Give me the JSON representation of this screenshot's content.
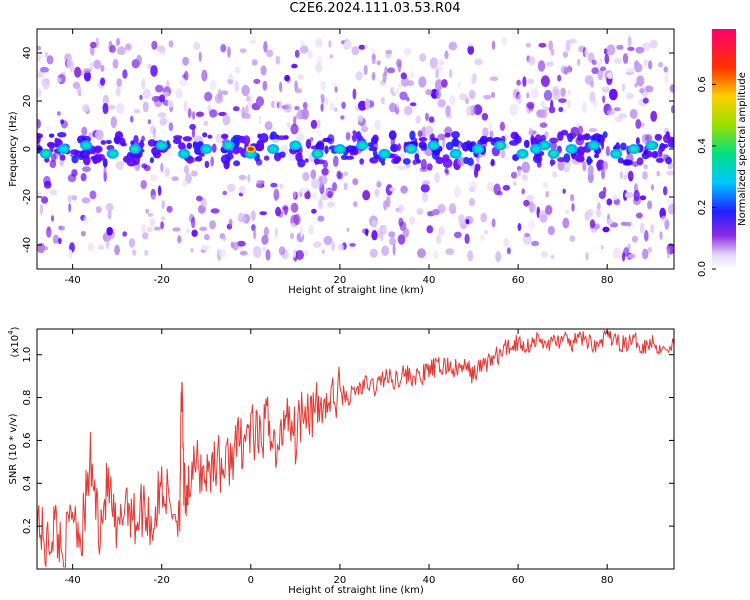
{
  "title": "C2E6.2024.111.03.53.R04",
  "colors": {
    "snr_line": "#e53935",
    "background": "#ffffff"
  },
  "chart_data": [
    {
      "type": "heatmap",
      "title": "C2E6.2024.111.03.53.R04",
      "xlabel": "Height of straight line (km)",
      "ylabel": "Frequency (Hz)",
      "xlim": [
        -48,
        95
      ],
      "ylim": [
        -50,
        50
      ],
      "xticks": [
        -40,
        -20,
        0,
        20,
        40,
        60,
        80
      ],
      "yticks": [
        -40,
        -20,
        0,
        20,
        40
      ],
      "grid": false,
      "colorbar": {
        "label": "Normalized spectral amplitude",
        "range": [
          0,
          0.78
        ],
        "ticks": [
          0.0,
          0.2,
          0.4,
          0.6
        ],
        "colormap": "rainbow (white-violet-blue-cyan-green-yellow-red-magenta)"
      },
      "description_values": {
        "center_band_frequency": 0,
        "peak_value": 0.78,
        "peak_x": 0,
        "band_blob_x": [
          -46,
          -42,
          -37,
          -31,
          -26,
          -20,
          -15,
          -10,
          -5,
          0,
          5,
          10,
          15,
          20,
          25,
          30,
          36,
          41,
          46,
          51,
          56,
          61,
          64,
          66,
          68,
          72,
          77,
          82,
          86,
          90
        ]
      }
    },
    {
      "type": "line",
      "xlabel": "Height of straight line (km)",
      "ylabel": "SNR (10 * v/v)",
      "y_scale_label": "(x10",
      "y_scale_exp": "4",
      "y_scale_suffix": ")",
      "xlim": [
        -48,
        95
      ],
      "ylim": [
        0.0,
        1.12
      ],
      "xticks": [
        -40,
        -20,
        0,
        20,
        40,
        60,
        80
      ],
      "yticks": [
        0.2,
        0.4,
        0.6,
        0.8,
        1.0
      ],
      "grid": false,
      "series": [
        {
          "x": [
            -48,
            -46,
            -44,
            -42,
            -40,
            -38,
            -36,
            -34,
            -32,
            -30,
            -28,
            -26,
            -24,
            -22,
            -20,
            -18,
            -16,
            -15.5,
            -15,
            -14,
            -12,
            -10,
            -8,
            -6,
            -4,
            -2,
            0,
            2,
            4,
            6,
            8,
            10,
            12,
            14,
            16,
            18,
            20,
            22,
            24,
            26,
            28,
            30,
            32,
            34,
            36,
            38,
            40,
            42,
            44,
            46,
            48,
            50,
            52,
            54,
            56,
            58,
            60,
            62,
            64,
            66,
            68,
            70,
            72,
            74,
            76,
            78,
            80,
            82,
            84,
            86,
            88,
            90,
            92,
            95
          ],
          "y": [
            0.27,
            0.08,
            0.22,
            0.05,
            0.3,
            0.15,
            0.5,
            0.2,
            0.4,
            0.12,
            0.35,
            0.22,
            0.3,
            0.2,
            0.4,
            0.3,
            0.25,
            0.87,
            0.35,
            0.4,
            0.48,
            0.44,
            0.52,
            0.46,
            0.55,
            0.6,
            0.65,
            0.58,
            0.72,
            0.5,
            0.78,
            0.62,
            0.8,
            0.72,
            0.76,
            0.78,
            0.82,
            0.8,
            0.84,
            0.86,
            0.85,
            0.9,
            0.88,
            0.91,
            0.9,
            0.89,
            0.93,
            0.94,
            0.95,
            0.93,
            0.94,
            0.91,
            0.95,
            0.98,
            1.0,
            1.04,
            1.06,
            1.04,
            1.07,
            1.05,
            1.06,
            1.07,
            1.05,
            1.08,
            1.06,
            1.04,
            1.1,
            1.06,
            1.05,
            1.07,
            1.04,
            1.06,
            1.03,
            1.05
          ]
        }
      ]
    }
  ]
}
